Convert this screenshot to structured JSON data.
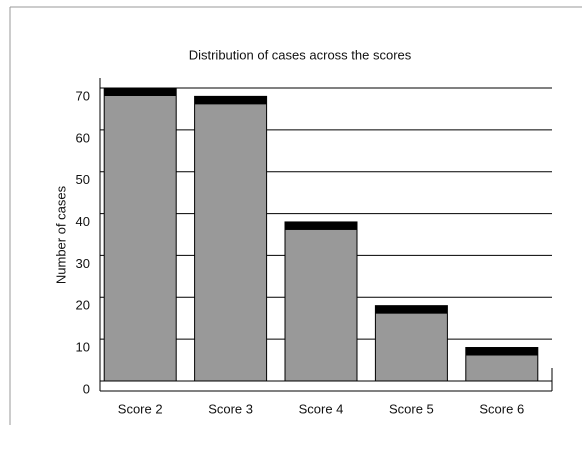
{
  "chart_data": {
    "type": "bar",
    "title": "Distribution of cases across the scores",
    "y_label": "Number of cases",
    "categories": [
      "Score 2",
      "Score 3",
      "Score 4",
      "Score 5",
      "Score 6"
    ],
    "values": [
      70,
      68,
      38,
      18,
      8
    ],
    "color": "#999999",
    "ylim": [
      0,
      70
    ],
    "yticks": [
      0,
      10,
      20,
      30,
      40,
      50,
      60,
      70
    ],
    "grid": true
  }
}
